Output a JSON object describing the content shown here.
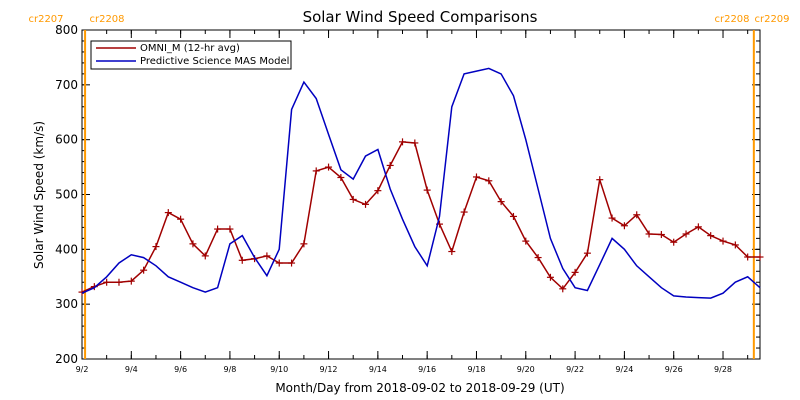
{
  "chart_data": {
    "type": "line",
    "title": "Solar Wind Speed Comparisons",
    "xlabel": "Month/Day from 2018-09-02 to 2018-09-29 (UT)",
    "ylabel": "Solar Wind Speed (km/s)",
    "xlim": [
      "2018-09-02",
      "2018-09-29T12:00"
    ],
    "ylim": [
      200,
      800
    ],
    "yticks": [
      200,
      300,
      400,
      500,
      600,
      700,
      800
    ],
    "xtick_labels": [
      "9/2",
      "9/4",
      "9/6",
      "9/8",
      "9/10",
      "9/12",
      "9/14",
      "9/16",
      "9/18",
      "9/20",
      "9/22",
      "9/24",
      "9/26",
      "9/28"
    ],
    "xtick_dates": [
      "2018-09-02",
      "2018-09-04",
      "2018-09-06",
      "2018-09-08",
      "2018-09-10",
      "2018-09-12",
      "2018-09-14",
      "2018-09-16",
      "2018-09-18",
      "2018-09-20",
      "2018-09-22",
      "2018-09-24",
      "2018-09-26",
      "2018-09-28"
    ],
    "carrington_labels": {
      "top_left": [
        "cr2207",
        "cr2208"
      ],
      "top_right": [
        "cr2208",
        "cr2209"
      ],
      "line_dates": [
        "2018-09-02T03:00",
        "2018-09-29T06:00"
      ]
    },
    "legend_position": "top-left",
    "series": [
      {
        "name": "OMNI_M (12-hr avg)",
        "color": "#a00000",
        "marker": "plus",
        "x": [
          "2018-09-02T00:00",
          "2018-09-02T12:00",
          "2018-09-03T00:00",
          "2018-09-03T12:00",
          "2018-09-04T00:00",
          "2018-09-04T12:00",
          "2018-09-05T00:00",
          "2018-09-05T12:00",
          "2018-09-06T00:00",
          "2018-09-06T12:00",
          "2018-09-07T00:00",
          "2018-09-07T12:00",
          "2018-09-08T00:00",
          "2018-09-08T12:00",
          "2018-09-09T00:00",
          "2018-09-09T12:00",
          "2018-09-10T00:00",
          "2018-09-10T12:00",
          "2018-09-11T00:00",
          "2018-09-11T12:00",
          "2018-09-12T00:00",
          "2018-09-12T12:00",
          "2018-09-13T00:00",
          "2018-09-13T12:00",
          "2018-09-14T00:00",
          "2018-09-14T12:00",
          "2018-09-15T00:00",
          "2018-09-15T12:00",
          "2018-09-16T00:00",
          "2018-09-16T12:00",
          "2018-09-17T00:00",
          "2018-09-17T12:00",
          "2018-09-18T00:00",
          "2018-09-18T12:00",
          "2018-09-19T00:00",
          "2018-09-19T12:00",
          "2018-09-20T00:00",
          "2018-09-20T12:00",
          "2018-09-21T00:00",
          "2018-09-21T12:00",
          "2018-09-22T00:00",
          "2018-09-22T12:00",
          "2018-09-23T00:00",
          "2018-09-23T12:00",
          "2018-09-24T00:00",
          "2018-09-24T12:00",
          "2018-09-25T00:00",
          "2018-09-25T12:00",
          "2018-09-26T00:00",
          "2018-09-26T12:00",
          "2018-09-27T00:00",
          "2018-09-27T12:00",
          "2018-09-28T00:00",
          "2018-09-28T12:00",
          "2018-09-29T00:00",
          "2018-09-29T12:00"
        ],
        "y": [
          322,
          332,
          340,
          340,
          342,
          362,
          405,
          467,
          455,
          410,
          388,
          437,
          437,
          380,
          383,
          388,
          375,
          375,
          410,
          543,
          550,
          531,
          491,
          482,
          507,
          553,
          596,
          594,
          508,
          446,
          396,
          468,
          532,
          525,
          487,
          460,
          415,
          385,
          349,
          328,
          358,
          393,
          527,
          457,
          443,
          463,
          428,
          427,
          413,
          428,
          441,
          425,
          415,
          408,
          386,
          386
        ]
      },
      {
        "name": "Predictive Science MAS Model",
        "color": "#0000c0",
        "marker": "none",
        "x": [
          "2018-09-02T00:00",
          "2018-09-02T12:00",
          "2018-09-03T00:00",
          "2018-09-03T12:00",
          "2018-09-04T00:00",
          "2018-09-04T12:00",
          "2018-09-05T00:00",
          "2018-09-05T12:00",
          "2018-09-06T00:00",
          "2018-09-06T12:00",
          "2018-09-07T00:00",
          "2018-09-07T12:00",
          "2018-09-08T00:00",
          "2018-09-08T12:00",
          "2018-09-09T00:00",
          "2018-09-09T12:00",
          "2018-09-10T00:00",
          "2018-09-10T12:00",
          "2018-09-11T00:00",
          "2018-09-11T12:00",
          "2018-09-12T00:00",
          "2018-09-12T12:00",
          "2018-09-13T00:00",
          "2018-09-13T12:00",
          "2018-09-14T00:00",
          "2018-09-14T12:00",
          "2018-09-15T00:00",
          "2018-09-15T12:00",
          "2018-09-16T00:00",
          "2018-09-16T12:00",
          "2018-09-17T00:00",
          "2018-09-17T12:00",
          "2018-09-18T00:00",
          "2018-09-18T12:00",
          "2018-09-19T00:00",
          "2018-09-19T12:00",
          "2018-09-20T00:00",
          "2018-09-20T12:00",
          "2018-09-21T00:00",
          "2018-09-21T12:00",
          "2018-09-22T00:00",
          "2018-09-22T12:00",
          "2018-09-23T00:00",
          "2018-09-23T12:00",
          "2018-09-24T00:00",
          "2018-09-24T12:00",
          "2018-09-25T00:00",
          "2018-09-25T12:00",
          "2018-09-26T00:00",
          "2018-09-26T12:00",
          "2018-09-27T00:00",
          "2018-09-27T12:00",
          "2018-09-28T00:00",
          "2018-09-28T12:00",
          "2018-09-29T00:00",
          "2018-09-29T12:00"
        ],
        "y": [
          320,
          330,
          350,
          375,
          390,
          385,
          370,
          350,
          340,
          330,
          322,
          330,
          410,
          425,
          385,
          352,
          400,
          655,
          705,
          675,
          610,
          545,
          528,
          570,
          582,
          510,
          455,
          405,
          370,
          460,
          660,
          720,
          725,
          730,
          720,
          680,
          600,
          510,
          420,
          365,
          330,
          325,
          372,
          420,
          400,
          370,
          350,
          330,
          315,
          313,
          312,
          311,
          320,
          340,
          350,
          330
        ]
      }
    ]
  }
}
